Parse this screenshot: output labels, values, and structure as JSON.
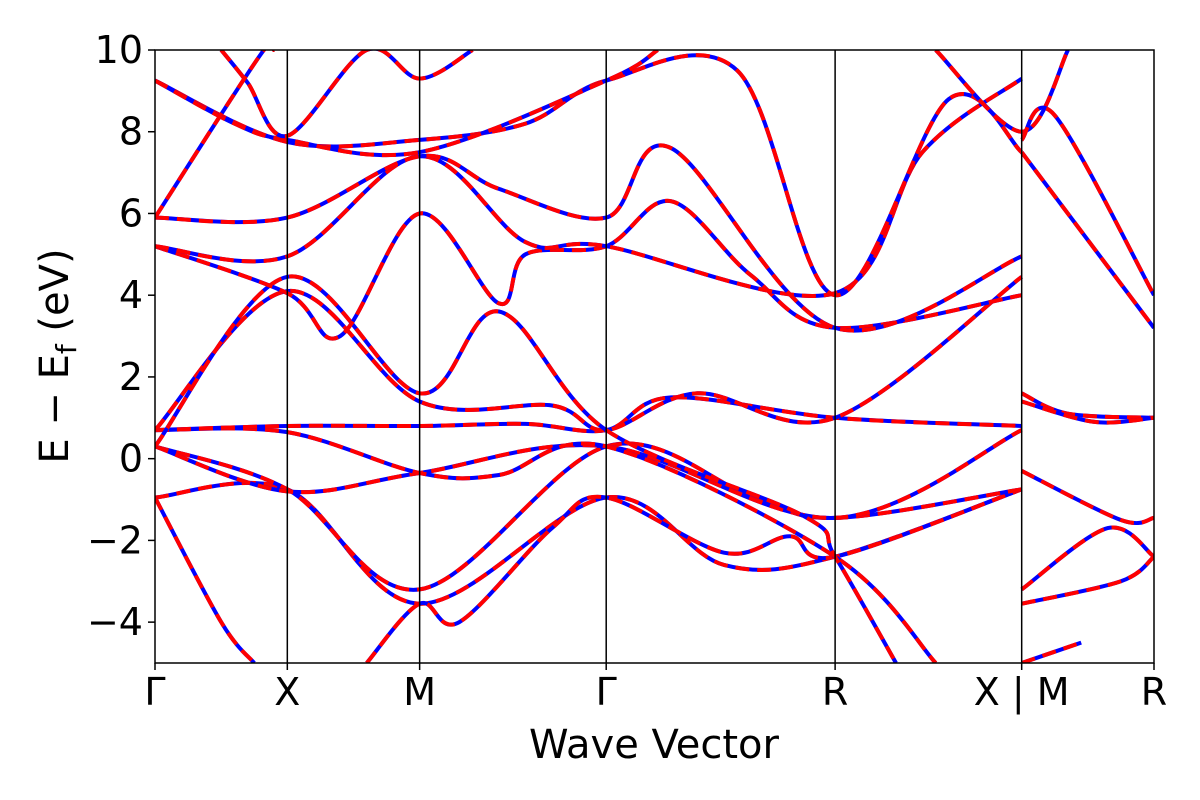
{
  "chart_data": {
    "type": "line",
    "xlabel": "Wave Vector",
    "ylabel": "E − E",
    "ylabel_sub": "f",
    "ylabel_unit": " (eV)",
    "ylim": [
      -5,
      10
    ],
    "xlim": [
      0,
      7.5
    ],
    "yticks": [
      -4,
      -2,
      0,
      2,
      4,
      6,
      8,
      10
    ],
    "ytick_labels": [
      "−4",
      "−2",
      "0",
      "2",
      "4",
      "6",
      "8",
      "10"
    ],
    "kpoints": [
      {
        "label": "Γ",
        "x": 0
      },
      {
        "label": "X",
        "x": 1.0
      },
      {
        "label": "M",
        "x": 2.0
      },
      {
        "label": "Γ",
        "x": 3.41
      },
      {
        "label": "R",
        "x": 5.14
      },
      {
        "label": "X | M",
        "x": 6.55
      },
      {
        "label": "R",
        "x": 7.55
      }
    ],
    "grid": false,
    "series_styles": [
      {
        "color": "#0000ff",
        "style": "solid"
      },
      {
        "color": "#ff0000",
        "style": "dashed"
      }
    ],
    "bands": [
      [
        [
          0,
          -0.95
        ],
        [
          1.0,
          -0.75
        ],
        [
          2.0,
          -3.55
        ],
        [
          3.41,
          -0.95
        ],
        [
          4.3,
          -2.6
        ],
        [
          5.14,
          -2.4
        ],
        [
          6.55,
          -0.75
        ]
      ],
      [
        [
          0,
          -0.95
        ],
        [
          0.5,
          -4.0
        ],
        [
          0.75,
          -5.0
        ]
      ],
      [
        [
          1.6,
          -5.0
        ],
        [
          2.0,
          -3.55
        ],
        [
          2.3,
          -4.0
        ],
        [
          3.0,
          -1.7
        ],
        [
          3.41,
          -0.95
        ],
        [
          4.3,
          -2.3
        ],
        [
          4.8,
          -1.9
        ],
        [
          5.14,
          -2.4
        ],
        [
          6.55,
          -0.75
        ]
      ],
      [
        [
          0,
          0.3
        ],
        [
          1.0,
          -0.75
        ],
        [
          2.0,
          -3.2
        ],
        [
          3.41,
          0.3
        ],
        [
          4.5,
          -0.9
        ],
        [
          5.14,
          -1.45
        ],
        [
          6.55,
          -0.75
        ]
      ],
      [
        [
          0,
          0.3
        ],
        [
          1.0,
          -0.8
        ],
        [
          2.0,
          -0.35
        ],
        [
          3.41,
          0.3
        ],
        [
          5.14,
          -1.45
        ],
        [
          6.55,
          0.7
        ]
      ],
      [
        [
          0,
          0.7
        ],
        [
          1.0,
          0.65
        ],
        [
          2.0,
          -0.35
        ],
        [
          2.6,
          -0.4
        ],
        [
          3.41,
          0.3
        ],
        [
          5.14,
          -2.4
        ],
        [
          5.9,
          -5.0
        ]
      ],
      [
        [
          0,
          0.7
        ],
        [
          1.0,
          0.8
        ],
        [
          2.0,
          0.8
        ],
        [
          2.8,
          0.85
        ],
        [
          3.41,
          0.7
        ],
        [
          3.9,
          1.5
        ],
        [
          5.14,
          1.0
        ],
        [
          6.55,
          0.8
        ]
      ],
      [
        [
          0,
          0.7
        ],
        [
          1.0,
          4.1
        ],
        [
          2.0,
          1.4
        ],
        [
          3.0,
          1.3
        ],
        [
          3.41,
          0.7
        ],
        [
          4.1,
          1.6
        ],
        [
          5.14,
          1.0
        ],
        [
          6.55,
          4.45
        ]
      ],
      [
        [
          0,
          0.3
        ],
        [
          1.0,
          4.45
        ],
        [
          2.0,
          1.6
        ],
        [
          2.6,
          3.6
        ],
        [
          3.41,
          0.7
        ],
        [
          4.9,
          -1.4
        ],
        [
          5.14,
          -2.4
        ],
        [
          5.6,
          -5.0
        ]
      ],
      [
        [
          0,
          5.2
        ],
        [
          1.0,
          4.05
        ],
        [
          1.4,
          3.0
        ],
        [
          2.0,
          6.0
        ],
        [
          2.6,
          3.8
        ],
        [
          2.8,
          5.0
        ],
        [
          3.41,
          5.2
        ],
        [
          3.9,
          6.3
        ],
        [
          4.5,
          4.5
        ],
        [
          5.14,
          3.2
        ],
        [
          6.55,
          4.0
        ]
      ],
      [
        [
          0,
          5.2
        ],
        [
          1.0,
          4.95
        ],
        [
          2.0,
          7.4
        ],
        [
          2.8,
          5.3
        ],
        [
          3.41,
          5.2
        ],
        [
          5.14,
          4.05
        ],
        [
          5.8,
          7.5
        ],
        [
          6.55,
          9.3
        ]
      ],
      [
        [
          0,
          5.9
        ],
        [
          1.0,
          5.9
        ],
        [
          2.0,
          7.4
        ],
        [
          2.6,
          6.6
        ],
        [
          3.41,
          5.9
        ],
        [
          3.9,
          7.6
        ],
        [
          5.14,
          3.2
        ],
        [
          6.55,
          4.95
        ]
      ],
      [
        [
          0,
          9.25
        ],
        [
          1.0,
          7.75
        ],
        [
          2.0,
          7.8
        ],
        [
          2.8,
          8.2
        ],
        [
          3.41,
          9.25
        ],
        [
          4.4,
          9.5
        ],
        [
          5.14,
          4.0
        ],
        [
          6.0,
          8.8
        ],
        [
          6.55,
          7.5
        ]
      ],
      [
        [
          0,
          9.25
        ],
        [
          0.6,
          8.2
        ],
        [
          1.0,
          7.8
        ],
        [
          2.0,
          7.5
        ],
        [
          3.41,
          9.25
        ],
        [
          3.8,
          10.0
        ]
      ],
      [
        [
          0.5,
          10.0
        ],
        [
          0.7,
          9.2
        ],
        [
          1.0,
          7.9
        ],
        [
          1.6,
          10.0
        ],
        [
          2.0,
          9.3
        ],
        [
          2.4,
          10.0
        ]
      ],
      [
        [
          0,
          5.9
        ],
        [
          0.8,
          9.9
        ],
        [
          0.9,
          10.0
        ]
      ],
      [
        [
          5.9,
          10.0
        ],
        [
          6.55,
          8.0
        ],
        [
          6.9,
          10.0
        ]
      ],
      [
        [
          6.55,
          7.8
        ],
        [
          6.8,
          8.4
        ],
        [
          7.55,
          4.0
        ]
      ],
      [
        [
          6.55,
          7.5
        ],
        [
          7.55,
          3.2
        ]
      ],
      [
        [
          6.55,
          1.6
        ],
        [
          6.9,
          1.1
        ],
        [
          7.55,
          1.0
        ]
      ],
      [
        [
          6.55,
          1.4
        ],
        [
          7.1,
          0.9
        ],
        [
          7.55,
          1.0
        ]
      ],
      [
        [
          6.55,
          -0.3
        ],
        [
          7.3,
          -1.5
        ],
        [
          7.55,
          -1.45
        ]
      ],
      [
        [
          6.55,
          -3.2
        ],
        [
          7.2,
          -1.7
        ],
        [
          7.55,
          -2.4
        ]
      ],
      [
        [
          6.55,
          -3.55
        ],
        [
          7.3,
          -3.0
        ],
        [
          7.55,
          -2.4
        ]
      ],
      [
        [
          6.55,
          -5.0
        ],
        [
          7.0,
          -4.5
        ]
      ]
    ]
  }
}
